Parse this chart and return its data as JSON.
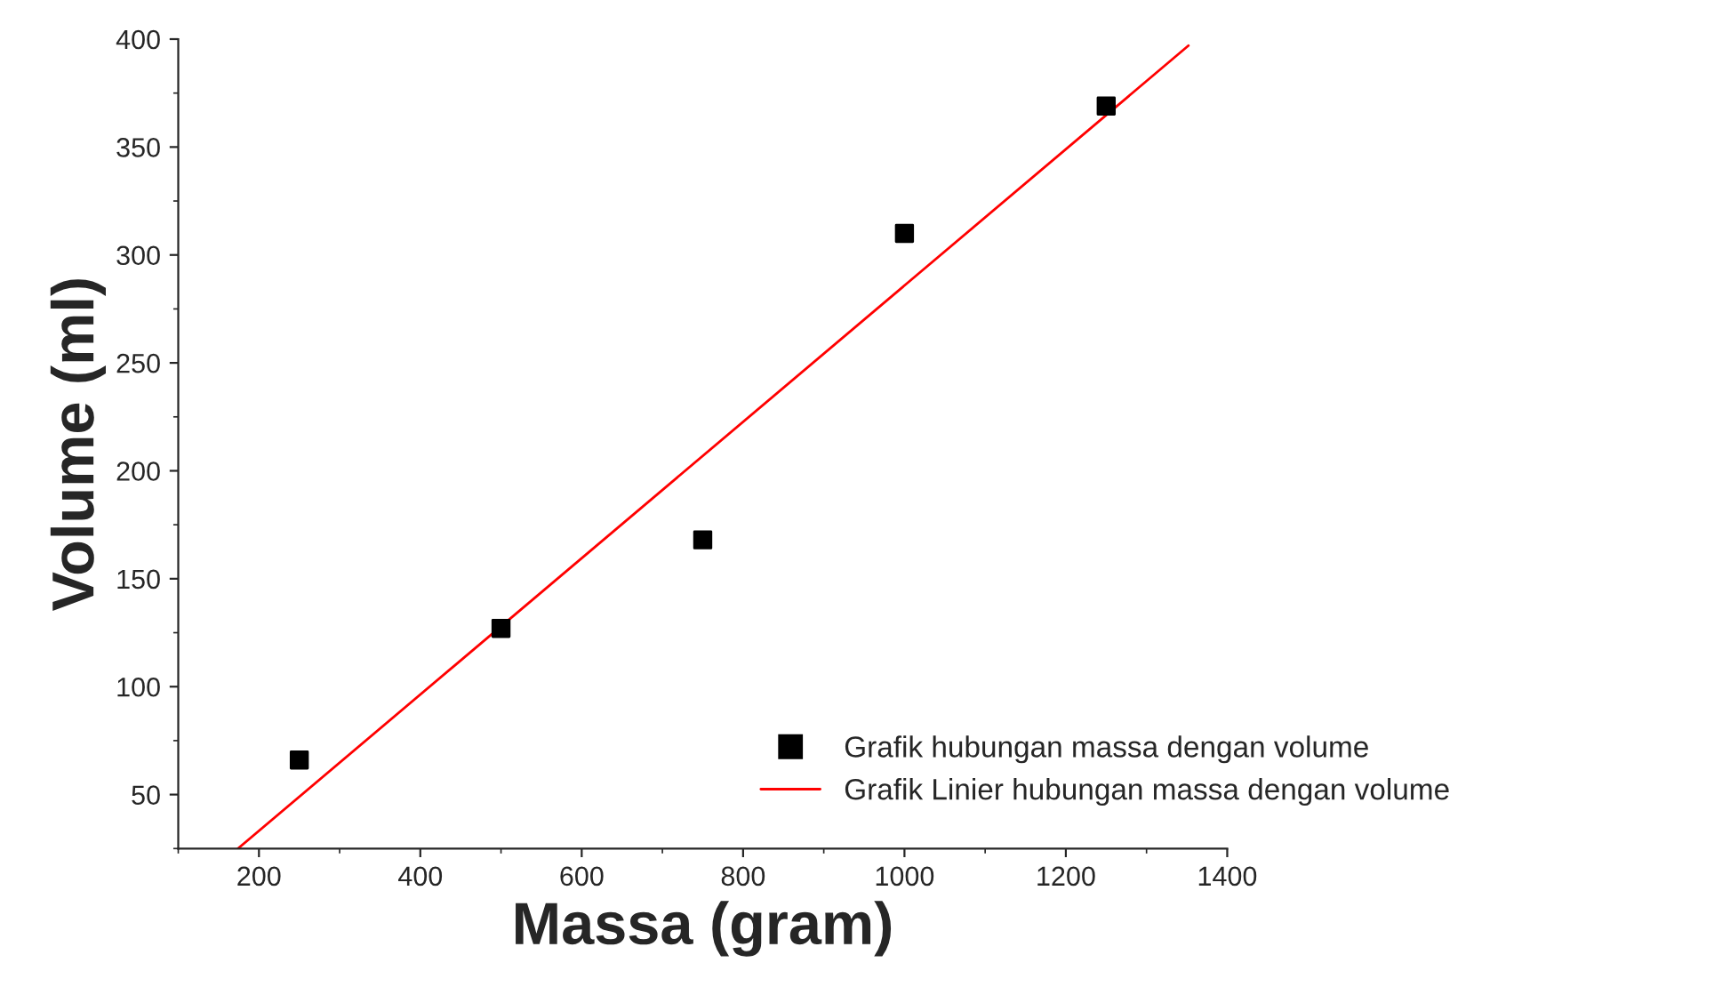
{
  "chart_data": {
    "type": "scatter",
    "xlabel": "Massa (gram)",
    "ylabel": "Volume (ml)",
    "xlim": [
      100,
      1400
    ],
    "xticks": [
      200,
      400,
      600,
      800,
      1000,
      1200,
      1400
    ],
    "ylim": [
      25,
      400
    ],
    "yticks": [
      50,
      100,
      150,
      200,
      250,
      300,
      350,
      400
    ],
    "series": [
      {
        "name": "Grafik hubungan massa dengan volume",
        "color": "#000000",
        "marker": "square",
        "x": [
          250,
          500,
          750,
          1000,
          1250
        ],
        "values": [
          66,
          127,
          168,
          310,
          369
        ]
      },
      {
        "name": "Grafik Linier hubungan massa dengan volume",
        "color": "#ff0000",
        "type": "line",
        "marker": "none",
        "line_style": "solid",
        "x": [
          174,
          1352
        ],
        "values": [
          25,
          397
        ]
      }
    ],
    "legend": "bottom right",
    "grid": false
  }
}
